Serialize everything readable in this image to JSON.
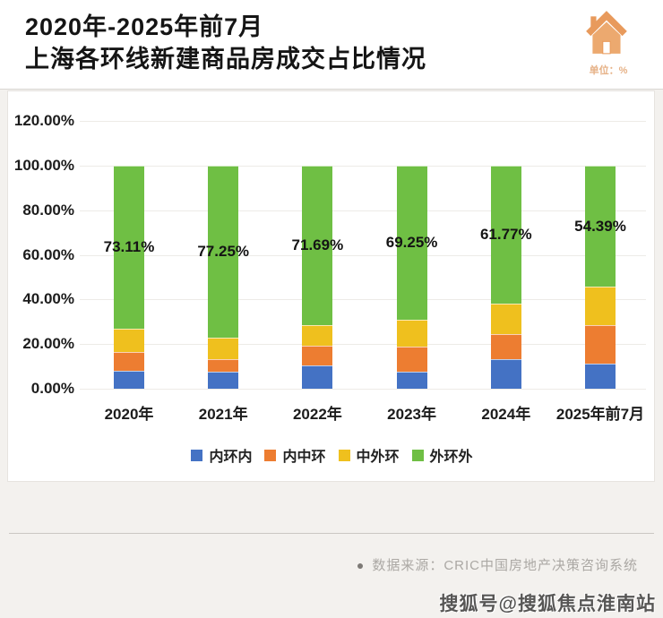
{
  "header": {
    "title_line1": "2020年-2025年前7月",
    "title_line2": "上海各环线新建商品房成交占比情况",
    "unit_label": "单位：%",
    "accent_color": "#E89A5C"
  },
  "chart_data": {
    "type": "bar",
    "stacked": true,
    "title": "2020年-2025年前7月上海各环线新建商品房成交占比情况",
    "unit": "%",
    "categories": [
      "2020年",
      "2021年",
      "2022年",
      "2023年",
      "2024年",
      "2025年前7月"
    ],
    "series": [
      {
        "name": "内环内",
        "color": "#4472C4",
        "values": [
          8.1,
          7.6,
          10.5,
          7.5,
          13.3,
          11.4
        ]
      },
      {
        "name": "内中环",
        "color": "#ED7D31",
        "values": [
          8.5,
          5.7,
          8.9,
          11.5,
          11.1,
          17.0
        ]
      },
      {
        "name": "中外环",
        "color": "#EFC01E",
        "values": [
          10.29,
          9.45,
          8.91,
          11.75,
          13.83,
          17.21
        ]
      },
      {
        "name": "外环外",
        "color": "#6FBF44",
        "values": [
          73.11,
          77.25,
          71.69,
          69.25,
          61.77,
          54.39
        ],
        "labels": [
          "73.11%",
          "77.25%",
          "71.69%",
          "69.25%",
          "61.77%",
          "54.39%"
        ]
      }
    ],
    "ylim": [
      0,
      120
    ],
    "yticks": [
      "120.00%",
      "100.00%",
      "80.00%",
      "60.00%",
      "40.00%",
      "20.00%",
      "0.00%"
    ],
    "grid": true,
    "legend_position": "bottom"
  },
  "footer": {
    "source_bullet": "●",
    "source_text": "数据来源：CRIC中国房地产决策咨询系统",
    "watermark": "搜狐号@搜狐焦点淮南站"
  }
}
